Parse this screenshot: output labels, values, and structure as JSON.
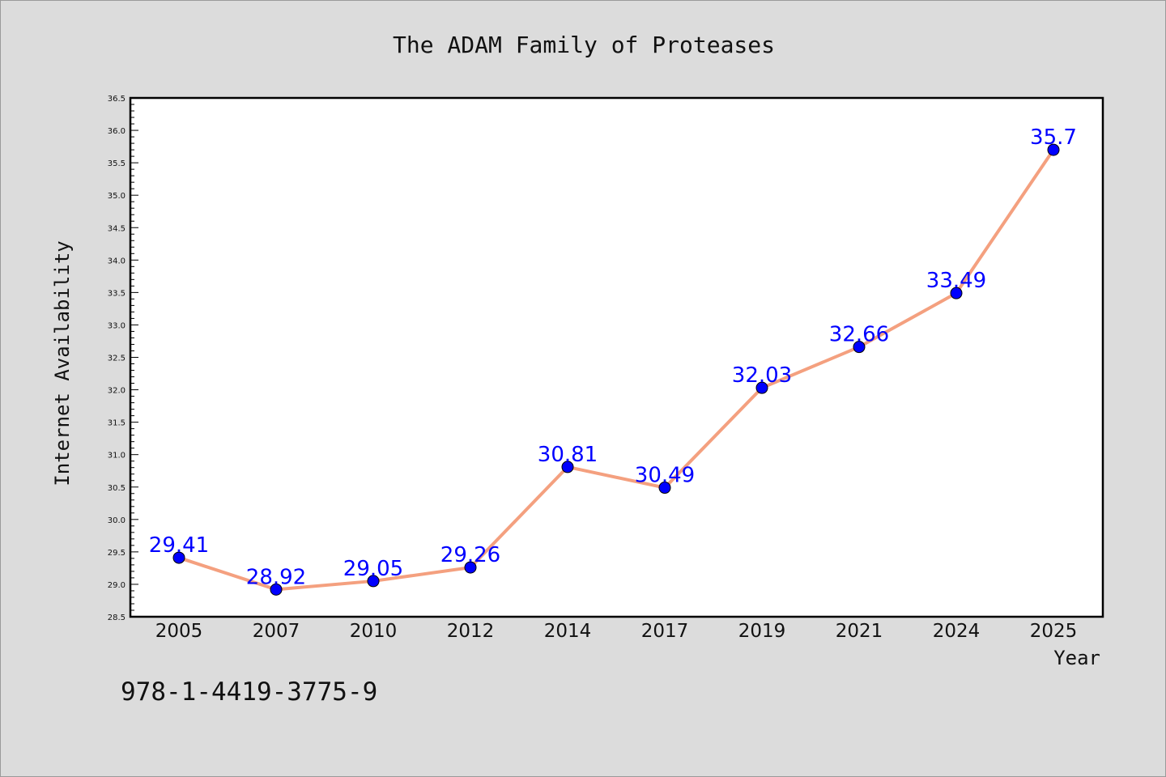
{
  "chart_data": {
    "type": "line",
    "title": "The ADAM Family of Proteases",
    "xlabel": "Year",
    "ylabel": "Internet Availability",
    "categories": [
      "2005",
      "2007",
      "2010",
      "2012",
      "2014",
      "2017",
      "2019",
      "2021",
      "2024",
      "2025"
    ],
    "series": [
      {
        "values": [
          29.41,
          28.92,
          29.05,
          29.26,
          30.81,
          30.49,
          32.03,
          32.66,
          33.49,
          35.7
        ],
        "data_labels": [
          "29.41",
          "28.92",
          "29.05",
          "29.26",
          "30.81",
          "30.49",
          "32.03",
          "32.66",
          "33.49",
          "35.7"
        ]
      }
    ],
    "ylim": [
      28.5,
      36.5
    ],
    "yticks": [
      "28.5",
      "29.0",
      "29.5",
      "30.0",
      "30.5",
      "31.0",
      "31.5",
      "32.0",
      "32.5",
      "33.0",
      "33.5",
      "34.0",
      "34.5",
      "35.0",
      "35.5",
      "36.0",
      "36.5"
    ],
    "grid": false,
    "legend": "none",
    "line_color": "#f4a07f",
    "marker_color": "#0000ff",
    "background_color": "#dcdcdc",
    "plot_background_color": "#ffffff"
  },
  "annotation": {
    "isbn": "978-1-4419-3775-9"
  }
}
